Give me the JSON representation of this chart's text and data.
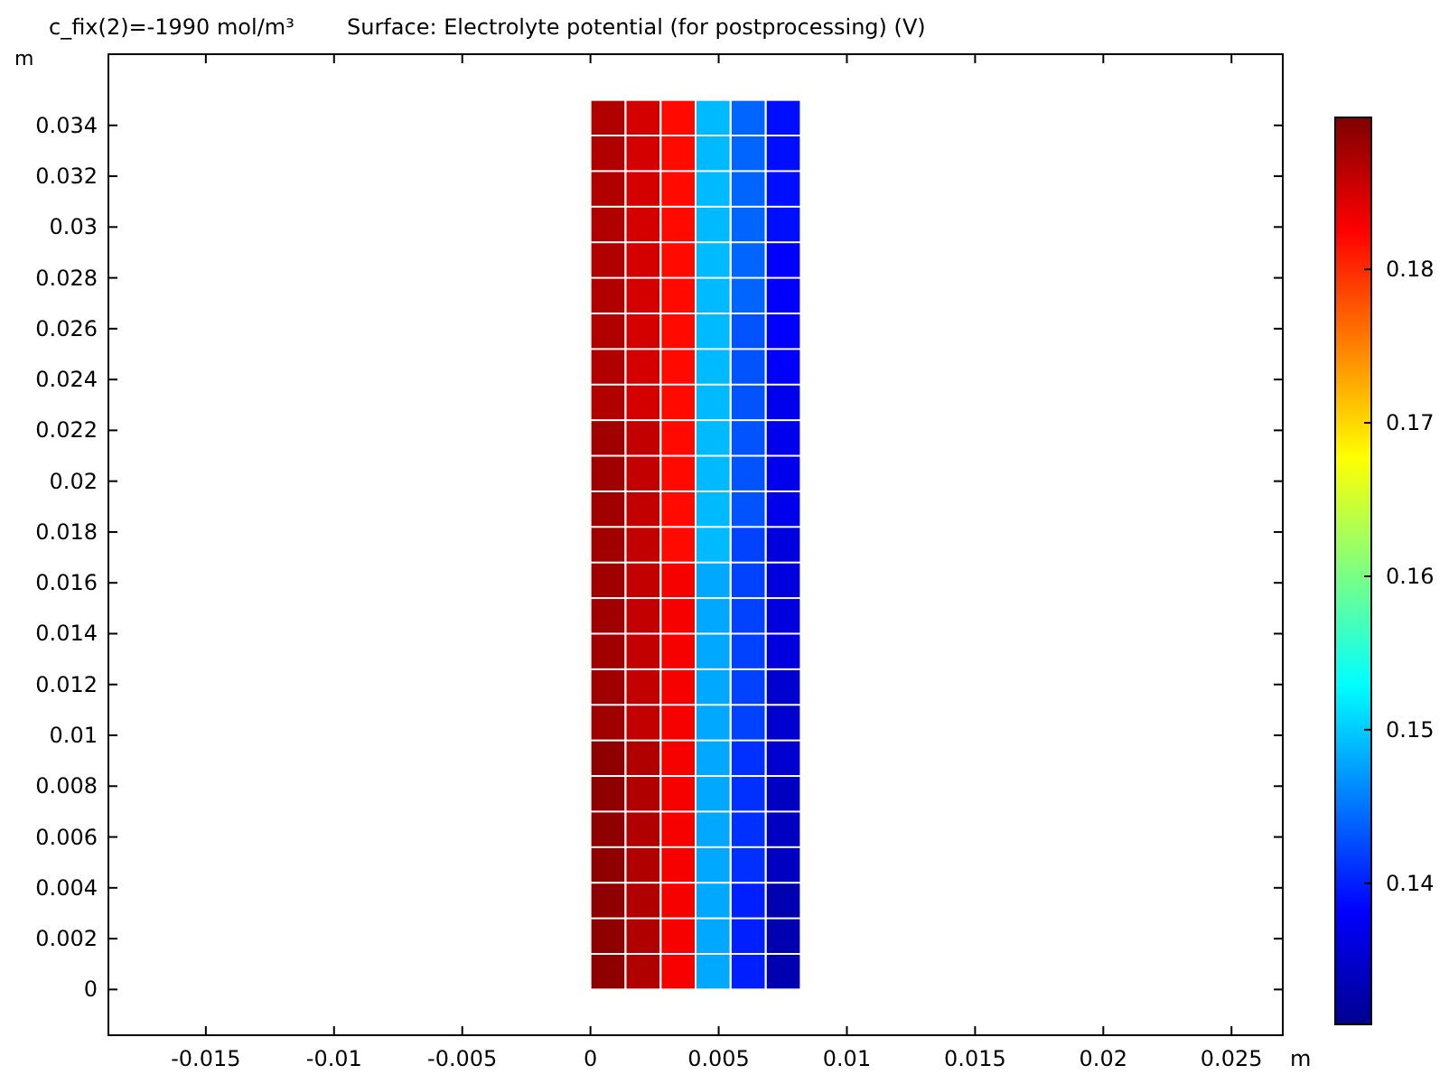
{
  "chart_data": {
    "type": "scatter",
    "title": "c_fix(2)=-1990 mol/m³",
    "subtitle": "Surface: Electrolyte potential (for postprocessing) (V)",
    "xlabel": "m",
    "ylabel": "m",
    "marker": "square",
    "x": [
      0.00068,
      0.00205,
      0.00342,
      0.00478,
      0.00615,
      0.00752,
      0.00068,
      0.00205,
      0.00342,
      0.00478,
      0.00615,
      0.00752,
      0.00068,
      0.00205,
      0.00342,
      0.00478,
      0.00615,
      0.00752,
      0.00068,
      0.00205,
      0.00342,
      0.00478,
      0.00615,
      0.00752,
      0.00068,
      0.00205,
      0.00342,
      0.00478,
      0.00615,
      0.00752,
      0.00068,
      0.00205,
      0.00342,
      0.00478,
      0.00615,
      0.00752,
      0.00068,
      0.00205,
      0.00342,
      0.00478,
      0.00615,
      0.00752,
      0.00068,
      0.00205,
      0.00342,
      0.00478,
      0.00615,
      0.00752,
      0.00068,
      0.00205,
      0.00342,
      0.00478,
      0.00615,
      0.00752,
      0.00068,
      0.00205,
      0.00342,
      0.00478,
      0.00615,
      0.00752,
      0.00068,
      0.00205,
      0.00342,
      0.00478,
      0.00615,
      0.00752,
      0.00068,
      0.00205,
      0.00342,
      0.00478,
      0.00615,
      0.00752,
      0.00068,
      0.00205,
      0.00342,
      0.00478,
      0.00615,
      0.00752,
      0.00068,
      0.00205,
      0.00342,
      0.00478,
      0.00615,
      0.00752,
      0.00068,
      0.00205,
      0.00342,
      0.00478,
      0.00615,
      0.00752,
      0.00068,
      0.00205,
      0.00342,
      0.00478,
      0.00615,
      0.00752,
      0.00068,
      0.00205,
      0.00342,
      0.00478,
      0.00615,
      0.00752,
      0.00068,
      0.00205,
      0.00342,
      0.00478,
      0.00615,
      0.00752,
      0.00068,
      0.00205,
      0.00342,
      0.00478,
      0.00615,
      0.00752,
      0.00068,
      0.00205,
      0.00342,
      0.00478,
      0.00615,
      0.00752,
      0.00068,
      0.00205,
      0.00342,
      0.00478,
      0.00615,
      0.00752,
      0.00068,
      0.00205,
      0.00342,
      0.00478,
      0.00615,
      0.00752,
      0.00068,
      0.00205,
      0.00342,
      0.00478,
      0.00615,
      0.00752,
      0.00068,
      0.00205,
      0.00342,
      0.00478,
      0.00615,
      0.00752,
      0.00068,
      0.00205,
      0.00342,
      0.00478,
      0.00615,
      0.00752
    ],
    "values": [
      0.0343,
      0.0343,
      0.0343,
      0.0343,
      0.0343,
      0.0343,
      0.0329,
      0.0329,
      0.0329,
      0.0329,
      0.0329,
      0.0329,
      0.0315,
      0.0315,
      0.0315,
      0.0315,
      0.0315,
      0.0315,
      0.0301,
      0.0301,
      0.0301,
      0.0301,
      0.0301,
      0.0301,
      0.0287,
      0.0287,
      0.0287,
      0.0287,
      0.0287,
      0.0287,
      0.0273,
      0.0273,
      0.0273,
      0.0273,
      0.0273,
      0.0273,
      0.0259,
      0.0259,
      0.0259,
      0.0259,
      0.0259,
      0.0259,
      0.0245,
      0.0245,
      0.0245,
      0.0245,
      0.0245,
      0.0245,
      0.0231,
      0.0231,
      0.0231,
      0.0231,
      0.0231,
      0.0231,
      0.0217,
      0.0217,
      0.0217,
      0.0217,
      0.0217,
      0.0217,
      0.0203,
      0.0203,
      0.0203,
      0.0203,
      0.0203,
      0.0203,
      0.0189,
      0.0189,
      0.0189,
      0.0189,
      0.0189,
      0.0189,
      0.0175,
      0.0175,
      0.0175,
      0.0175,
      0.0175,
      0.0175,
      0.0161,
      0.0161,
      0.0161,
      0.0161,
      0.0161,
      0.0161,
      0.0147,
      0.0147,
      0.0147,
      0.0147,
      0.0147,
      0.0147,
      0.0133,
      0.0133,
      0.0133,
      0.0133,
      0.0133,
      0.0133,
      0.0119,
      0.0119,
      0.0119,
      0.0119,
      0.0119,
      0.0119,
      0.0105,
      0.0105,
      0.0105,
      0.0105,
      0.0105,
      0.0105,
      0.0091,
      0.0091,
      0.0091,
      0.0091,
      0.0091,
      0.0091,
      0.0077,
      0.0077,
      0.0077,
      0.0077,
      0.0077,
      0.0077,
      0.0063,
      0.0063,
      0.0063,
      0.0063,
      0.0063,
      0.0063,
      0.0049,
      0.0049,
      0.0049,
      0.0049,
      0.0049,
      0.0049,
      0.0035,
      0.0035,
      0.0035,
      0.0035,
      0.0035,
      0.0035,
      0.0021,
      0.0021,
      0.0021,
      0.0021,
      0.0021,
      0.0021,
      0.0007,
      0.0007,
      0.0007,
      0.0007,
      0.0007,
      0.0007
    ],
    "cvalues": [
      0.187,
      0.185,
      0.182,
      0.149,
      0.144,
      0.139,
      0.187,
      0.185,
      0.182,
      0.149,
      0.144,
      0.139,
      0.187,
      0.185,
      0.182,
      0.149,
      0.144,
      0.139,
      0.187,
      0.185,
      0.182,
      0.149,
      0.144,
      0.139,
      0.187,
      0.185,
      0.182,
      0.149,
      0.144,
      0.138,
      0.187,
      0.185,
      0.182,
      0.149,
      0.144,
      0.138,
      0.187,
      0.185,
      0.182,
      0.149,
      0.143,
      0.138,
      0.187,
      0.185,
      0.182,
      0.149,
      0.143,
      0.138,
      0.187,
      0.185,
      0.182,
      0.149,
      0.143,
      0.137,
      0.188,
      0.186,
      0.182,
      0.149,
      0.143,
      0.137,
      0.188,
      0.186,
      0.182,
      0.149,
      0.143,
      0.137,
      0.188,
      0.186,
      0.182,
      0.149,
      0.143,
      0.137,
      0.188,
      0.186,
      0.182,
      0.149,
      0.142,
      0.136,
      0.188,
      0.186,
      0.183,
      0.148,
      0.142,
      0.136,
      0.188,
      0.186,
      0.183,
      0.148,
      0.142,
      0.136,
      0.188,
      0.186,
      0.183,
      0.148,
      0.142,
      0.136,
      0.188,
      0.186,
      0.183,
      0.148,
      0.142,
      0.135,
      0.188,
      0.186,
      0.183,
      0.148,
      0.142,
      0.135,
      0.189,
      0.187,
      0.183,
      0.148,
      0.141,
      0.135,
      0.189,
      0.187,
      0.183,
      0.148,
      0.141,
      0.134,
      0.189,
      0.187,
      0.183,
      0.148,
      0.141,
      0.134,
      0.189,
      0.187,
      0.183,
      0.148,
      0.141,
      0.134,
      0.189,
      0.187,
      0.183,
      0.148,
      0.14,
      0.133,
      0.189,
      0.187,
      0.183,
      0.148,
      0.14,
      0.133,
      0.189,
      0.187,
      0.183,
      0.148,
      0.14,
      0.133
    ],
    "xlim": [
      -0.0188,
      0.027
    ],
    "xticks": [
      -0.015,
      -0.01,
      -0.005,
      0,
      0.005,
      0.01,
      0.015,
      0.02,
      0.025
    ],
    "ylim": [
      -0.0018,
      0.0368
    ],
    "yticks": [
      0,
      0.002,
      0.004,
      0.006,
      0.008,
      0.01,
      0.012,
      0.014,
      0.016,
      0.018,
      0.02,
      0.022,
      0.024,
      0.026,
      0.028,
      0.03,
      0.032,
      0.034
    ],
    "clim": [
      0.1308,
      0.1899
    ],
    "cticks": [
      0.14,
      0.15,
      0.16,
      0.17,
      0.18
    ],
    "grid": false
  }
}
